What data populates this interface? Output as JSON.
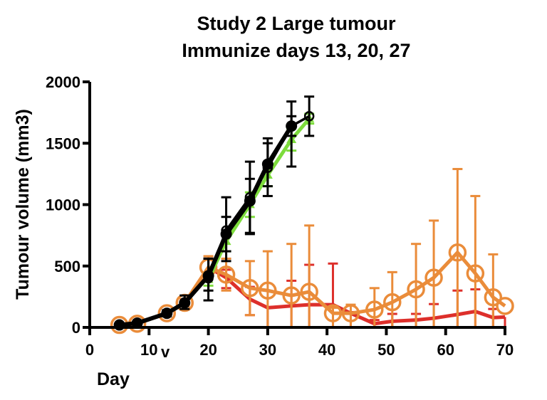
{
  "chart_data": {
    "type": "line",
    "title": [
      "Study 2 Large tumour",
      "Immunize days 13, 20, 27"
    ],
    "xlabel": "Day",
    "ylabel": "Tumour volume (mm3)",
    "xlim": [
      0,
      70
    ],
    "ylim": [
      0,
      2000
    ],
    "xticks": [
      0,
      10,
      20,
      30,
      40,
      50,
      60,
      70
    ],
    "xtick_labels": [
      "0",
      "10",
      "20",
      "30",
      "40",
      "50",
      "60",
      "70"
    ],
    "xtick_annotation": "v",
    "yticks": [
      0,
      500,
      1000,
      1500,
      2000
    ],
    "ytick_labels": [
      "0",
      "500",
      "1000",
      "1500",
      "2000"
    ],
    "grid": false,
    "legend": "none",
    "series": [
      {
        "name": "red",
        "color": "#dd2f2b",
        "marker": "none",
        "x": [
          20,
          23,
          27,
          30,
          34,
          37,
          41,
          44,
          48,
          51,
          55,
          58,
          62,
          65,
          68,
          70
        ],
        "y": [
          490,
          405,
          230,
          160,
          175,
          185,
          185,
          115,
          30,
          50,
          60,
          75,
          105,
          130,
          80,
          85
        ],
        "err_up": [
          560,
          470,
          330,
          0,
          380,
          510,
          520,
          125,
          60,
          110,
          110,
          190,
          300,
          310,
          150,
          0
        ],
        "err_down": [
          420,
          320,
          100,
          0,
          0,
          0,
          0,
          0,
          0,
          0,
          0,
          0,
          0,
          0,
          0,
          0
        ]
      },
      {
        "name": "orange-open-circle",
        "color": "#ea8c3a",
        "marker": "open-circle",
        "x": [
          5,
          8,
          13,
          16,
          20,
          23,
          27,
          30,
          34,
          37,
          41,
          44,
          48,
          51,
          55,
          58,
          62,
          65,
          68,
          70
        ],
        "y": [
          20,
          30,
          115,
          200,
          490,
          430,
          320,
          300,
          260,
          290,
          115,
          115,
          145,
          205,
          310,
          405,
          610,
          440,
          245,
          175
        ],
        "err_up": [
          30,
          40,
          130,
          230,
          580,
          560,
          540,
          620,
          680,
          830,
          160,
          185,
          320,
          450,
          680,
          870,
          1290,
          1070,
          595,
          175
        ],
        "err_down": [
          10,
          20,
          100,
          170,
          400,
          300,
          100,
          0,
          0,
          0,
          0,
          0,
          0,
          0,
          0,
          0,
          0,
          0,
          0,
          175
        ]
      },
      {
        "name": "green-triangle",
        "color": "#7ddc3c",
        "marker": "triangle",
        "x": [
          20,
          23,
          27,
          30,
          34,
          37
        ],
        "y": [
          390,
          700,
          1000,
          1240,
          1530,
          1700
        ],
        "err_up": [
          440,
          780,
          1100,
          1330,
          1620,
          1740
        ],
        "err_down": [
          340,
          620,
          900,
          1150,
          1440,
          1660
        ]
      },
      {
        "name": "black-open-circle",
        "color": "#000000",
        "marker": "open-circle",
        "x": [
          20,
          23,
          27,
          30,
          34,
          37
        ],
        "y": [
          400,
          790,
          1060,
          1300,
          1640,
          1720
        ],
        "err_up": [
          560,
          1060,
          1350,
          1540,
          1840,
          1880
        ],
        "err_down": [
          220,
          540,
          770,
          1070,
          1310,
          1560
        ]
      },
      {
        "name": "black-filled-circle",
        "color": "#000000",
        "marker": "filled-circle",
        "x": [
          5,
          8,
          13,
          16,
          20,
          23,
          27,
          30,
          34
        ],
        "y": [
          20,
          35,
          115,
          200,
          420,
          760,
          1030,
          1330,
          1640
        ],
        "err_up": [
          30,
          45,
          140,
          260,
          560,
          900,
          1210,
          1500,
          1720
        ],
        "err_down": [
          10,
          25,
          90,
          150,
          300,
          620,
          760,
          1150,
          1560
        ]
      }
    ]
  }
}
